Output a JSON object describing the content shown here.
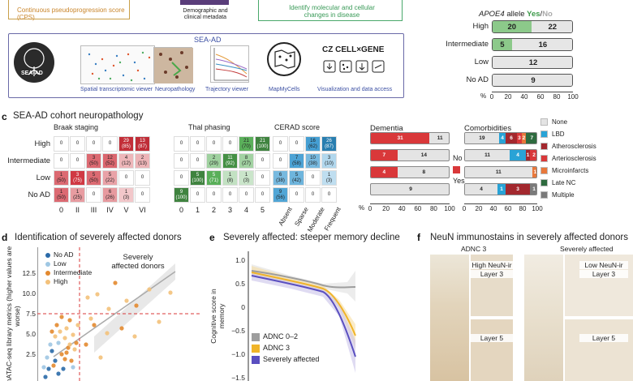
{
  "top": {
    "cps_label": "Continuous pseudoprogression score (CPS)",
    "meta_label": "Demographic and clinical metadata",
    "identify_label": "Identify molecular and cellular changes in disease"
  },
  "sea_ad": {
    "title": "SEA-AD",
    "logo_text": "SEA-AD",
    "tools": [
      "Spatial transcriptomic viewer",
      "Neuropathology",
      "Trajectory viewer",
      "MapMyCells",
      "Visualization and data access"
    ],
    "cz_logo": "CZ CELL×GENE"
  },
  "apoe": {
    "header_prefix": "APOE4",
    "header_suffix": "allele",
    "yes_label": "Yes",
    "slash": "/",
    "no_label": "No",
    "rows": [
      {
        "label": "High",
        "yes": 20,
        "no": 22
      },
      {
        "label": "Intermediate",
        "yes": 5,
        "no": 16
      },
      {
        "label": "Low",
        "yes": "",
        "no": 12
      },
      {
        "label": "No AD",
        "yes": "",
        "no": 9
      }
    ],
    "axis_unit": "%",
    "ticks": [
      "0",
      "20",
      "40",
      "60",
      "80",
      "100"
    ],
    "colors": {
      "yes": "#8cc98a",
      "no": "#e6e6e6"
    }
  },
  "panel_c": {
    "letter": "c",
    "title": "SEA-AD cohort neuropathology",
    "rows": [
      "High",
      "Intermediate",
      "Low",
      "No AD"
    ],
    "braak": {
      "title": "Braak staging",
      "cols": [
        "0",
        "II",
        "III",
        "IV",
        "V",
        "VI"
      ],
      "cells": [
        [
          [
            "0",
            ""
          ],
          [
            "0",
            ""
          ],
          [
            "0",
            ""
          ],
          [
            "0",
            ""
          ],
          [
            "29",
            "(85)"
          ],
          [
            "13",
            "(87)"
          ]
        ],
        [
          [
            "0",
            ""
          ],
          [
            "0",
            ""
          ],
          [
            "3",
            "(50)"
          ],
          [
            "12",
            "(52)"
          ],
          [
            "4",
            "(12)"
          ],
          [
            "2",
            "(13)"
          ]
        ],
        [
          [
            "1",
            "(50)"
          ],
          [
            "3",
            "(75)"
          ],
          [
            "5",
            "(50)"
          ],
          [
            "5",
            "(22)"
          ],
          [
            "0",
            ""
          ],
          [
            "0",
            ""
          ]
        ],
        [
          [
            "1",
            "(50)"
          ],
          [
            "1",
            "(25)"
          ],
          [
            "0",
            ""
          ],
          [
            "6",
            "(26)"
          ],
          [
            "1",
            "(3)"
          ],
          [
            "0",
            ""
          ]
        ]
      ]
    },
    "thal": {
      "title": "Thal phasing",
      "cols": [
        "0",
        "1",
        "2",
        "3",
        "4",
        "5"
      ],
      "cells": [
        [
          [
            "0",
            ""
          ],
          [
            "0",
            ""
          ],
          [
            "0",
            ""
          ],
          [
            "0",
            ""
          ],
          [
            "21",
            "(70)"
          ],
          [
            "21",
            "(100)"
          ]
        ],
        [
          [
            "0",
            ""
          ],
          [
            "0",
            ""
          ],
          [
            "2",
            "(29)"
          ],
          [
            "11",
            "(92)"
          ],
          [
            "8",
            "(27)"
          ],
          [
            "0",
            ""
          ]
        ],
        [
          [
            "0",
            ""
          ],
          [
            "5",
            "(100)"
          ],
          [
            "5",
            "(71)"
          ],
          [
            "1",
            "(8)"
          ],
          [
            "1",
            "(3)"
          ],
          [
            "0",
            ""
          ]
        ],
        [
          [
            "9",
            "(100)"
          ],
          [
            "0",
            ""
          ],
          [
            "0",
            ""
          ],
          [
            "0",
            ""
          ],
          [
            "0",
            ""
          ],
          [
            "0",
            ""
          ]
        ]
      ]
    },
    "cerad": {
      "title": "CERAD score",
      "cols": [
        "Absent",
        "Sparse",
        "Moderate",
        "Frequent"
      ],
      "cells": [
        [
          [
            "0",
            ""
          ],
          [
            "0",
            ""
          ],
          [
            "16",
            "(62)"
          ],
          [
            "26",
            "(87)"
          ]
        ],
        [
          [
            "0",
            ""
          ],
          [
            "7",
            "(58)"
          ],
          [
            "10",
            "(38)"
          ],
          [
            "3",
            "(10)"
          ]
        ],
        [
          [
            "6",
            "(38)"
          ],
          [
            "5",
            "(42)"
          ],
          [
            "0",
            ""
          ],
          [
            "1",
            "(3)"
          ]
        ],
        [
          [
            "9",
            "(56)"
          ],
          [
            "0",
            ""
          ],
          [
            "0",
            ""
          ],
          [
            "0",
            ""
          ]
        ]
      ]
    },
    "dementia": {
      "title": "Dementia",
      "rows": [
        {
          "yes": 31,
          "no": 11
        },
        {
          "yes": 7,
          "no": 14
        },
        {
          "yes": 4,
          "no": 8
        },
        {
          "yes": 0,
          "no": 9
        }
      ],
      "no_label": "No",
      "yes_label": "Yes",
      "axis_unit": "%",
      "ticks": [
        "0",
        "20",
        "40",
        "60",
        "80",
        "100"
      ]
    },
    "comorbidities": {
      "title": "Comorbidities",
      "rows": [
        {
          "none": 19,
          "lbd": 4,
          "athero": 6,
          "arterio": 3,
          "micro": 2,
          "late": 7,
          "multiple": 0
        },
        {
          "none": 11,
          "lbd": 4,
          "athero": 1,
          "arterio": 2,
          "micro": 0,
          "late": 0,
          "multiple": 0
        },
        {
          "none": 11,
          "lbd": 0,
          "athero": 0,
          "arterio": 0,
          "micro": 1,
          "late": 0,
          "multiple": 0
        },
        {
          "none": 4,
          "lbd": 1,
          "athero": 3,
          "arterio": 0,
          "micro": 0,
          "late": 0,
          "multiple": 1
        }
      ],
      "legend": [
        {
          "label": "None",
          "color": "#e4e4e4"
        },
        {
          "label": "LBD",
          "color": "#29a3d6"
        },
        {
          "label": "Atherosclerosis",
          "color": "#a3282e"
        },
        {
          "label": "Arteriosclerosis",
          "color": "#d9383a"
        },
        {
          "label": "Microinfarcts",
          "color": "#e8783c"
        },
        {
          "label": "Late NC",
          "color": "#2e6b3f"
        },
        {
          "label": "Multiple",
          "color": "#7a7a7a"
        }
      ],
      "ticks": [
        "0",
        "20",
        "40",
        "60",
        "80",
        "100"
      ]
    }
  },
  "panel_d": {
    "letter": "d",
    "title": "Identification of severely affected donors",
    "ylabel": "snATAC-seq library metrics (higher values are worse)",
    "annotation": "Severely affected donors",
    "legend": [
      {
        "label": "No AD",
        "color": "#2a6aa8"
      },
      {
        "label": "Low",
        "color": "#9fc7e3"
      },
      {
        "label": "Intermediate",
        "color": "#e3892f"
      },
      {
        "label": "High",
        "color": "#f3c17a"
      }
    ],
    "yticks": [
      "2.5",
      "5.0",
      "7.5",
      "10.0",
      "12.5"
    ]
  },
  "panel_e": {
    "letter": "e",
    "title": "Severely affected: steeper memory decline",
    "ylabel": "Cognitive score in memory",
    "yticks": [
      "1.0",
      "0.5",
      "0",
      "−0.5",
      "−1.0",
      "−1.5"
    ],
    "legend": [
      {
        "label": "ADNC 0–2",
        "color": "#9e9e9e"
      },
      {
        "label": "ADNC 3",
        "color": "#f0b429"
      },
      {
        "label": "Severely affected",
        "color": "#5a4fc0"
      }
    ]
  },
  "panel_f": {
    "letter": "f",
    "title": "NeuN immunostains in severely affected donors",
    "col1": "ADNC 3",
    "col2": "Severely affected",
    "high_label": "High NeuN-ir",
    "low_label": "Low NeuN-ir",
    "layer3": "Layer 3",
    "layer5": "Layer 5"
  }
}
